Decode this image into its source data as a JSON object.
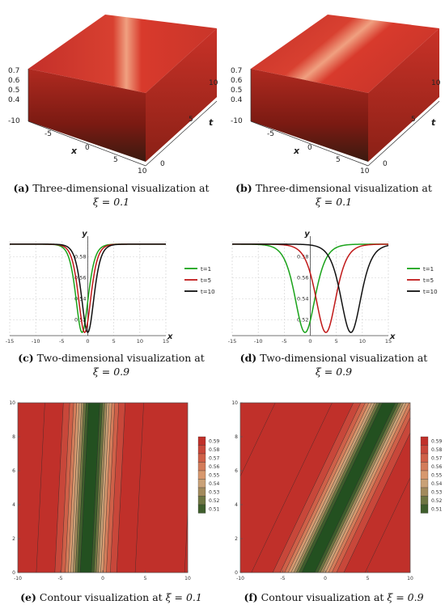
{
  "captions": {
    "a": {
      "tag": "(a)",
      "text": "Three-dimensional visualization at",
      "eq": "ξ = 0.1"
    },
    "b": {
      "tag": "(b)",
      "text": "Three-dimensional visualization at",
      "eq": "ξ = 0.1"
    },
    "c": {
      "tag": "(c)",
      "text": "Two-dimensional visualization at",
      "eq": "ξ = 0.9"
    },
    "d": {
      "tag": "(d)",
      "text": "Two-dimensional visualization at",
      "eq": "ξ = 0.9"
    },
    "e": {
      "tag": "(e)",
      "text": "Contour visualization at",
      "eq": "ξ = 0.1"
    },
    "f": {
      "tag": "(f)",
      "text": "Contour visualization at",
      "eq": "ξ = 0.9"
    }
  },
  "surface3d": {
    "z_ticks": [
      "0.7",
      "0.6",
      "0.5",
      "0.4"
    ],
    "x_ticks": [
      "-10",
      "-5",
      "0",
      "5",
      "10"
    ],
    "t_ticks": [
      "0",
      "5",
      "10"
    ],
    "x_label": "x",
    "t_label": "t",
    "color": "#d23a30"
  },
  "chart_data": [
    {
      "type": "line",
      "panel": "c",
      "xlabel": "x",
      "ylabel": "y",
      "xlim": [
        -15,
        15
      ],
      "ylim": [
        0.505,
        0.595
      ],
      "x_ticks": [
        -15,
        -10,
        -5,
        0,
        5,
        10,
        15
      ],
      "y_ticks": [
        0.52,
        0.54,
        0.56,
        0.58
      ],
      "series": [
        {
          "name": "t=1",
          "color": "#1aa31a",
          "center": -1.1,
          "width": 1.6
        },
        {
          "name": "t=5",
          "color": "#c01818",
          "center": -0.6,
          "width": 1.6
        },
        {
          "name": "t=10",
          "color": "#111111",
          "center": 0.0,
          "width": 1.6
        }
      ],
      "baseline": 0.592,
      "minimum": 0.508,
      "legend": "right"
    },
    {
      "type": "line",
      "panel": "d",
      "xlabel": "x",
      "ylabel": "y",
      "xlim": [
        -15,
        15
      ],
      "ylim": [
        0.505,
        0.595
      ],
      "x_ticks": [
        -15,
        -10,
        -5,
        0,
        5,
        10,
        15
      ],
      "y_ticks": [
        0.52,
        0.54,
        0.56,
        0.58
      ],
      "series": [
        {
          "name": "t=1",
          "color": "#1aa31a",
          "center": -1.0,
          "width": 2.6
        },
        {
          "name": "t=5",
          "color": "#c01818",
          "center": 3.0,
          "width": 2.6
        },
        {
          "name": "t=10",
          "color": "#111111",
          "center": 7.8,
          "width": 2.6
        }
      ],
      "baseline": 0.592,
      "minimum": 0.508,
      "legend": "right"
    },
    {
      "type": "heatmap",
      "panel": "e",
      "xlim": [
        -10,
        10
      ],
      "ylim": [
        0,
        10
      ],
      "x_ticks": [
        -10,
        -5,
        0,
        5,
        10
      ],
      "y_ticks": [
        0,
        2,
        4,
        6,
        8,
        10
      ],
      "center_at_t0": -2.0,
      "speed": 0.1,
      "width": 2.0,
      "colorbar": [
        "0.59",
        "0.58",
        "0.57",
        "0.56",
        "0.55",
        "0.54",
        "0.53",
        "0.52",
        "0.51"
      ]
    },
    {
      "type": "heatmap",
      "panel": "f",
      "xlim": [
        -10,
        10
      ],
      "ylim": [
        0,
        10
      ],
      "x_ticks": [
        -10,
        -5,
        0,
        5,
        10
      ],
      "y_ticks": [
        0,
        2,
        4,
        6,
        8,
        10
      ],
      "center_at_t0": -2.0,
      "speed": 0.95,
      "width": 2.3,
      "colorbar": [
        "0.59",
        "0.58",
        "0.57",
        "0.56",
        "0.55",
        "0.54",
        "0.53",
        "0.52",
        "0.51"
      ]
    }
  ]
}
